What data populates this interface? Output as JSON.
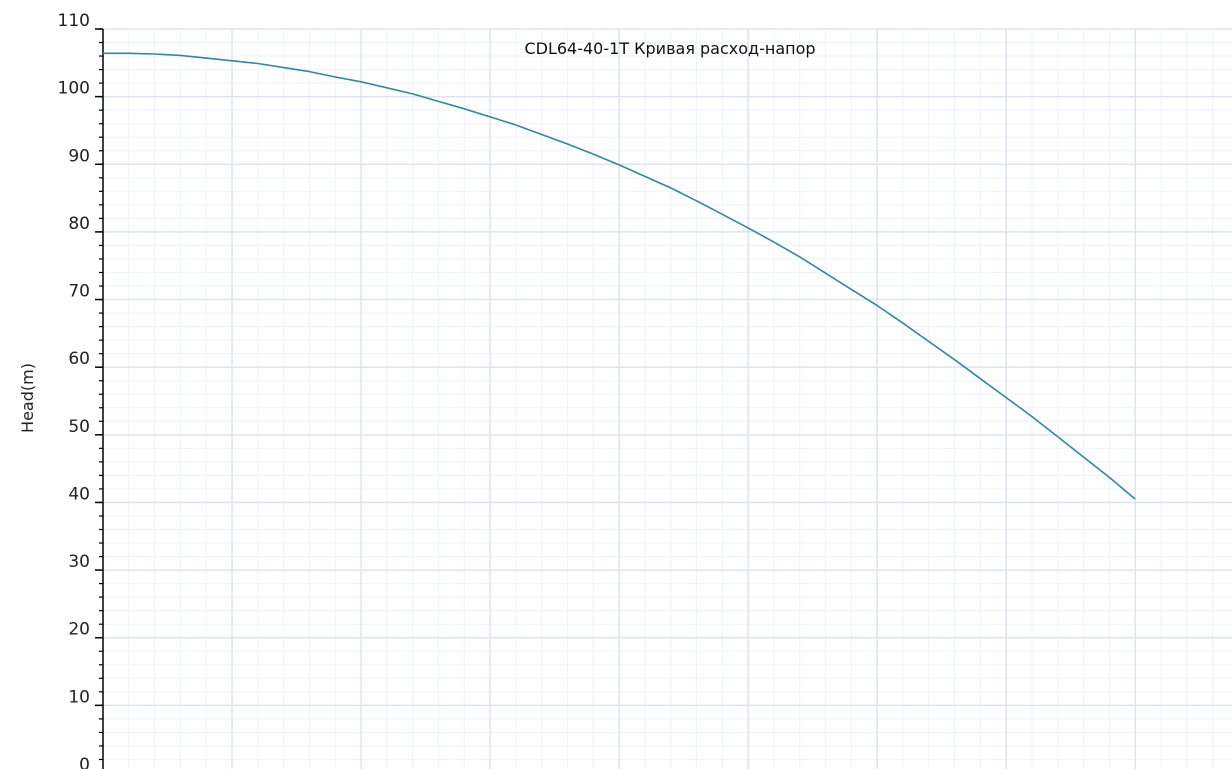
{
  "chart_data": {
    "type": "line",
    "title": "CDL64-40-1T Кривая расход-напор",
    "xlabel": "",
    "ylabel": "Head(m)",
    "ylim": [
      0,
      110
    ],
    "ytick_step": 10,
    "ytick_labels": [
      "0",
      "10",
      "20",
      "30",
      "40",
      "50",
      "60",
      "70",
      "80",
      "90",
      "100",
      "110"
    ],
    "xlim": [
      0,
      87.5
    ],
    "x_major_step": 10,
    "x_minor_step": 2,
    "y_minor_step": 2,
    "grid": true,
    "legend": "none",
    "series": [
      {
        "color": "#2a8c9c",
        "x": [
          0,
          2,
          4,
          6,
          8,
          10,
          12,
          14,
          16,
          18,
          20,
          22,
          24,
          26,
          28,
          30,
          32,
          34,
          36,
          38,
          40,
          42,
          44,
          46,
          48,
          50,
          52,
          54,
          56,
          58,
          60,
          62,
          64,
          66,
          68,
          70,
          72,
          74,
          76,
          78,
          80
        ],
        "y": [
          106.4,
          106.4,
          106.3,
          106.1,
          105.7,
          105.3,
          104.9,
          104.3,
          103.7,
          102.9,
          102.2,
          101.3,
          100.4,
          99.3,
          98.2,
          97.0,
          95.8,
          94.4,
          93.0,
          91.5,
          89.9,
          88.2,
          86.5,
          84.6,
          82.6,
          80.6,
          78.5,
          76.3,
          73.9,
          71.5,
          69.1,
          66.5,
          63.8,
          61.1,
          58.3,
          55.5,
          52.7,
          49.7,
          46.7,
          43.7,
          40.5
        ]
      }
    ]
  },
  "colors": {
    "major_grid": "#dde3f0",
    "minor_grid": "#f0f3f9",
    "axis": "#000000",
    "curve": "#2a8c9c"
  }
}
